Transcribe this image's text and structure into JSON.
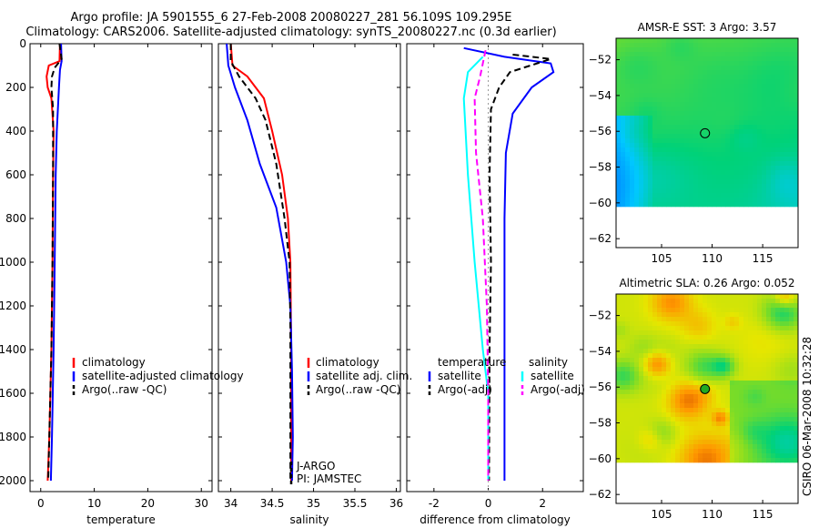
{
  "title_line1": "Argo profile: JA 5901555_6 27-Feb-2008 20080227_281 56.109S 109.295E",
  "title_line2": "Climatology: CARS2006. Satellite-adjusted climatology: synTS_20080227.nc (0.3d earlier)",
  "footer": "CSIRO 06-Mar-2008 10:32:28",
  "chart_data": [
    {
      "type": "line",
      "name": "temperature-profile",
      "xlabel": "temperature",
      "ylabel": "",
      "xlim": [
        -2,
        32
      ],
      "ylim": [
        0,
        2050
      ],
      "xticks": [
        0,
        10,
        20,
        30
      ],
      "xticklabels": [
        "0",
        "10",
        "20",
        "30"
      ],
      "yticks": [
        0,
        200,
        400,
        600,
        800,
        1000,
        1200,
        1400,
        1600,
        1800,
        2000
      ],
      "yticklabels": [
        "0",
        "200",
        "400",
        "600",
        "800",
        "1000",
        "1200",
        "1400",
        "1600",
        "1800",
        "2000"
      ],
      "legend": [
        "climatology",
        "satellite-adjusted climatology",
        "Argo(..raw -QC)"
      ],
      "series": [
        {
          "name": "climatology",
          "color": "#ff0000",
          "dash": "solid",
          "points": [
            [
              3.6,
              0
            ],
            [
              3.5,
              80
            ],
            [
              1.5,
              100
            ],
            [
              1.1,
              150
            ],
            [
              1.3,
              200
            ],
            [
              2.0,
              250
            ],
            [
              2.4,
              400
            ],
            [
              2.3,
              600
            ],
            [
              2.2,
              1000
            ],
            [
              2.0,
              1400
            ],
            [
              1.6,
              1800
            ],
            [
              1.3,
              2000
            ]
          ]
        },
        {
          "name": "satellite-adjusted climatology",
          "color": "#0000ff",
          "dash": "solid",
          "points": [
            [
              3.8,
              0
            ],
            [
              3.9,
              80
            ],
            [
              3.6,
              120
            ],
            [
              3.4,
              200
            ],
            [
              3.3,
              250
            ],
            [
              3.0,
              400
            ],
            [
              2.8,
              600
            ],
            [
              2.6,
              1000
            ],
            [
              2.4,
              1400
            ],
            [
              2.1,
              1800
            ],
            [
              1.9,
              2000
            ]
          ]
        },
        {
          "name": "Argo(..raw -QC)",
          "color": "#000000",
          "dash": "dash",
          "points": [
            [
              3.5,
              0
            ],
            [
              3.9,
              70
            ],
            [
              2.6,
              110
            ],
            [
              2.1,
              150
            ],
            [
              2.0,
              200
            ],
            [
              2.3,
              300
            ],
            [
              2.3,
              600
            ],
            [
              2.2,
              1000
            ],
            [
              2.0,
              1400
            ],
            [
              1.6,
              1800
            ],
            [
              1.4,
              2000
            ]
          ]
        }
      ]
    },
    {
      "type": "line",
      "name": "salinity-profile",
      "xlabel": "salinity",
      "ylabel": "",
      "xlim": [
        33.85,
        36.05
      ],
      "ylim": [
        0,
        2050
      ],
      "xticks": [
        34,
        34.5,
        35,
        35.5,
        36
      ],
      "xticklabels": [
        "34",
        "34.5",
        "35",
        "35.5",
        "36"
      ],
      "legend": [
        "climatology",
        "satellite adj. clim.",
        "Argo(..raw -QC)"
      ],
      "annotations": [
        "J-ARGO",
        "PI: JAMSTEC"
      ],
      "series": [
        {
          "name": "climatology",
          "color": "#ff0000",
          "dash": "solid",
          "points": [
            [
              34.0,
              0
            ],
            [
              34.02,
              100
            ],
            [
              34.2,
              150
            ],
            [
              34.4,
              250
            ],
            [
              34.5,
              400
            ],
            [
              34.62,
              600
            ],
            [
              34.69,
              800
            ],
            [
              34.72,
              1000
            ],
            [
              34.73,
              1400
            ],
            [
              34.73,
              1800
            ],
            [
              34.73,
              2000
            ]
          ]
        },
        {
          "name": "satellite adj. clim.",
          "color": "#0000ff",
          "dash": "solid",
          "points": [
            [
              33.95,
              0
            ],
            [
              33.97,
              100
            ],
            [
              34.05,
              200
            ],
            [
              34.2,
              350
            ],
            [
              34.35,
              550
            ],
            [
              34.55,
              750
            ],
            [
              34.67,
              1000
            ],
            [
              34.72,
              1200
            ],
            [
              34.74,
              1500
            ],
            [
              34.75,
              1800
            ],
            [
              34.74,
              2000
            ]
          ]
        },
        {
          "name": "Argo(..raw -QC)",
          "color": "#000000",
          "dash": "dash",
          "points": [
            [
              34.0,
              0
            ],
            [
              34.0,
              80
            ],
            [
              34.1,
              150
            ],
            [
              34.3,
              250
            ],
            [
              34.42,
              350
            ],
            [
              34.55,
              550
            ],
            [
              34.65,
              800
            ],
            [
              34.71,
              1000
            ],
            [
              34.72,
              1300
            ],
            [
              34.72,
              1700
            ],
            [
              34.72,
              2000
            ]
          ]
        }
      ]
    },
    {
      "type": "line",
      "name": "difference-profile",
      "xlabel": "difference from climatology",
      "ylabel": "",
      "xlim": [
        -3,
        3.5
      ],
      "ylim": [
        0,
        2050
      ],
      "xticks": [
        -2,
        0,
        2
      ],
      "xticklabels": [
        "-2",
        "0",
        "2"
      ],
      "legend_groups": [
        {
          "heading": "temperature",
          "items": [
            "satellite",
            "Argo(-adj)"
          ]
        },
        {
          "heading": "salinity",
          "items": [
            "satellite",
            "Argo(-adj)"
          ]
        }
      ],
      "series": [
        {
          "name": "temperature satellite",
          "color": "#0000ff",
          "dash": "solid",
          "points": [
            [
              -0.9,
              20
            ],
            [
              0.6,
              60
            ],
            [
              2.3,
              90
            ],
            [
              2.4,
              130
            ],
            [
              1.6,
              200
            ],
            [
              0.9,
              320
            ],
            [
              0.65,
              500
            ],
            [
              0.6,
              800
            ],
            [
              0.6,
              1400
            ],
            [
              0.6,
              2000
            ]
          ]
        },
        {
          "name": "temperature Argo(-adj)",
          "color": "#000000",
          "dash": "dash",
          "points": [
            [
              0.9,
              50
            ],
            [
              2.3,
              70
            ],
            [
              0.8,
              130
            ],
            [
              0.4,
              200
            ],
            [
              0.1,
              300
            ],
            [
              0.05,
              600
            ],
            [
              0.1,
              1000
            ],
            [
              0.05,
              1400
            ],
            [
              0.03,
              2000
            ]
          ]
        },
        {
          "name": "salinity satellite",
          "color": "#00ffff",
          "dash": "solid",
          "points": [
            [
              -0.2,
              60
            ],
            [
              -0.75,
              130
            ],
            [
              -0.9,
              250
            ],
            [
              -0.75,
              600
            ],
            [
              -0.5,
              1000
            ],
            [
              -0.2,
              1400
            ],
            [
              0.0,
              1600
            ],
            [
              0.0,
              2000
            ]
          ]
        },
        {
          "name": "salinity Argo(-adj)",
          "color": "#ff00ff",
          "dash": "dash",
          "points": [
            [
              -0.1,
              30
            ],
            [
              -0.3,
              150
            ],
            [
              -0.5,
              250
            ],
            [
              -0.45,
              500
            ],
            [
              -0.2,
              800
            ],
            [
              -0.05,
              1200
            ],
            [
              0.0,
              1600
            ],
            [
              0.0,
              2000
            ]
          ]
        }
      ]
    },
    {
      "type": "heatmap",
      "name": "sst-map",
      "title": "AMSR-E SST: 3 Argo: 3.57",
      "xlim": [
        100.5,
        118.5
      ],
      "ylim": [
        -62.5,
        -50.8
      ],
      "xticks": [
        105,
        110,
        115
      ],
      "xticklabels": [
        "105",
        "110",
        "115"
      ],
      "yticks": [
        -52,
        -54,
        -56,
        -58,
        -60,
        -62
      ],
      "yticklabels": [
        "−52",
        "−54",
        "−56",
        "−58",
        "−60",
        "−62"
      ],
      "data_extent": [
        100.5,
        118.5,
        -60.1,
        -50.8
      ],
      "argo_point": {
        "lon": 109.295,
        "lat": -56.109
      }
    },
    {
      "type": "heatmap",
      "name": "sla-map",
      "title": "Altimetric SLA: 0.26 Argo: 0.052",
      "xlim": [
        100.5,
        118.5
      ],
      "ylim": [
        -62.5,
        -50.8
      ],
      "xticks": [
        105,
        110,
        115
      ],
      "xticklabels": [
        "105",
        "110",
        "115"
      ],
      "yticks": [
        -52,
        -54,
        -56,
        -58,
        -60,
        -62
      ],
      "yticklabels": [
        "−52",
        "−54",
        "−56",
        "−58",
        "−60",
        "−62"
      ],
      "data_extent": [
        100.5,
        118.5,
        -60.1,
        -50.8
      ],
      "argo_point": {
        "lon": 109.295,
        "lat": -56.109
      }
    }
  ]
}
